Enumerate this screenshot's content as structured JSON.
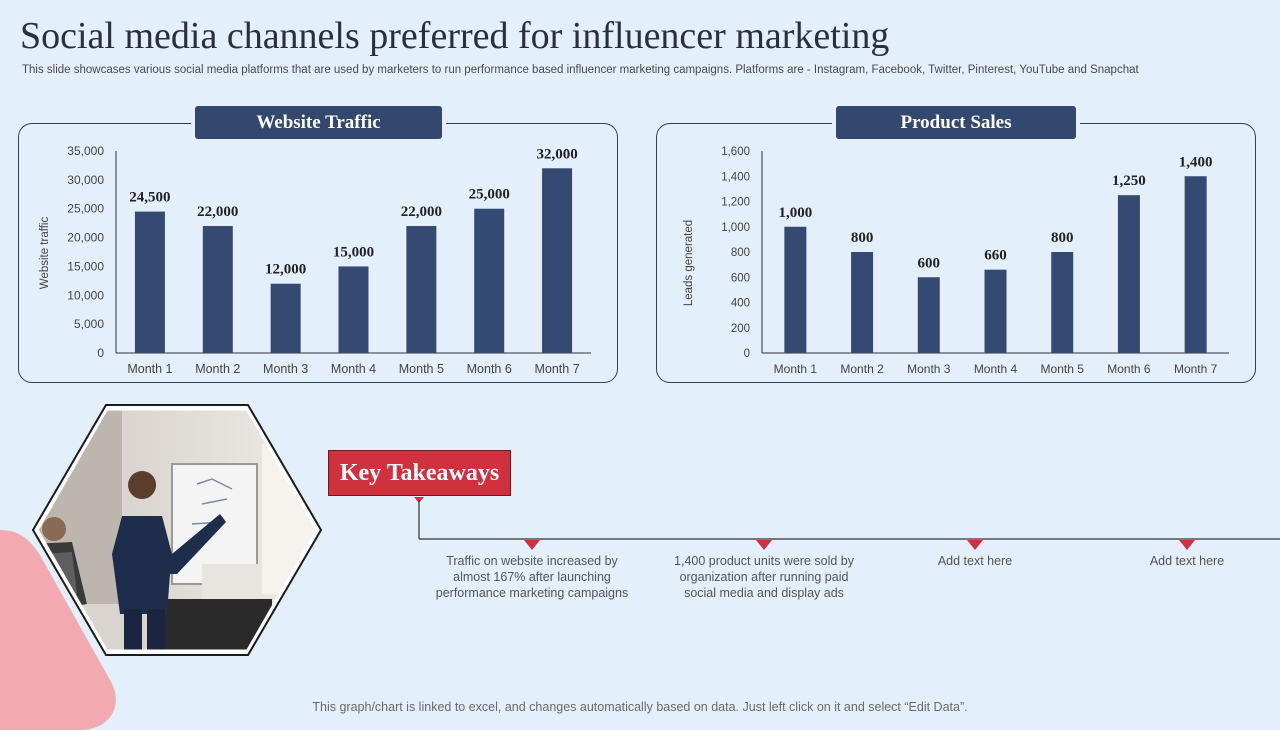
{
  "slide": {
    "title": "Social media channels preferred for influencer marketing",
    "subtitle": "This slide showcases various social media platforms that are used by marketers to run performance based influencer marketing campaigns. Platforms are - Instagram, Facebook, Twitter, Pinterest, YouTube and Snapchat",
    "footer": "This graph/chart is linked to excel, and changes automatically based on data. Just left click on it and select “Edit Data”."
  },
  "colors": {
    "bar": "#344a72",
    "accent_red": "#d0313f",
    "background": "#e3effb",
    "panel_border": "#2f3f5f"
  },
  "chart_data": [
    {
      "type": "bar",
      "title": "Website Traffic",
      "xlabel": "",
      "ylabel": "Website traffic",
      "categories": [
        "Month 1",
        "Month 2",
        "Month 3",
        "Month 4",
        "Month 5",
        "Month 6",
        "Month 7"
      ],
      "values": [
        24500,
        22000,
        12000,
        15000,
        22000,
        25000,
        32000
      ],
      "value_labels": [
        "24,500",
        "22,000",
        "12,000",
        "15,000",
        "22,000",
        "25,000",
        "32,000"
      ],
      "ylim": [
        0,
        35000
      ],
      "yticks": [
        0,
        5000,
        10000,
        15000,
        20000,
        25000,
        30000,
        35000
      ],
      "ytick_labels": [
        "0",
        "5,000",
        "10,000",
        "15,000",
        "20,000",
        "25,000",
        "30,000",
        "35,000"
      ],
      "grid": false,
      "legend": "none"
    },
    {
      "type": "bar",
      "title": "Product Sales",
      "xlabel": "",
      "ylabel": "Leads generated",
      "categories": [
        "Month 1",
        "Month 2",
        "Month 3",
        "Month 4",
        "Month 5",
        "Month 6",
        "Month 7"
      ],
      "values": [
        1000,
        800,
        600,
        660,
        800,
        1250,
        1400
      ],
      "value_labels": [
        "1,000",
        "800",
        "600",
        "660",
        "800",
        "1,250",
        "1,400"
      ],
      "ylim": [
        0,
        1600
      ],
      "yticks": [
        0,
        200,
        400,
        600,
        800,
        1000,
        1200,
        1400,
        1600
      ],
      "ytick_labels": [
        "0",
        "200",
        "400",
        "600",
        "800",
        "1,000",
        "1,200",
        "1,400",
        "1,600"
      ],
      "grid": false,
      "legend": "none"
    }
  ],
  "key_takeaways": {
    "heading": "Key Takeaways",
    "items": [
      "Traffic  on website increased by almost 167% after launching performance  marketing campaigns",
      "1,400 product units were sold by organization after running paid social media and display ads",
      "Add text here",
      "Add text here"
    ]
  },
  "image": {
    "icon": "presenter-photo"
  }
}
